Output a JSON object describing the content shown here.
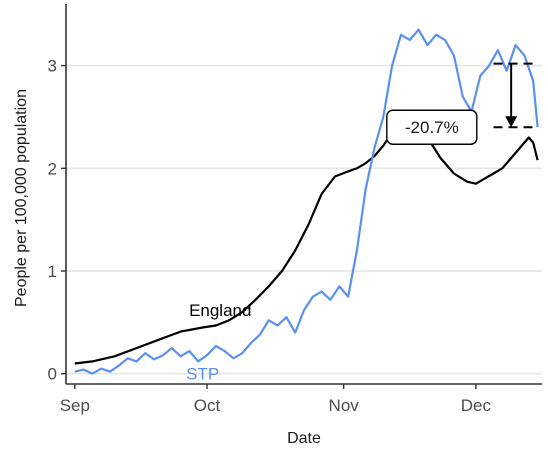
{
  "chart_data": {
    "type": "line",
    "title": "",
    "xlabel": "Date",
    "ylabel": "People per 100,000 population",
    "x_type": "date",
    "xlim": [
      "2020-08-30",
      "2020-12-16"
    ],
    "ylim": [
      -0.1,
      3.6
    ],
    "x_ticks": [
      {
        "date": "2020-09-01",
        "label": "Sep"
      },
      {
        "date": "2020-10-01",
        "label": "Oct"
      },
      {
        "date": "2020-11-01",
        "label": "Nov"
      },
      {
        "date": "2020-12-01",
        "label": "Dec"
      }
    ],
    "y_ticks": [
      {
        "value": 0,
        "label": "0"
      },
      {
        "value": 1,
        "label": "1"
      },
      {
        "value": 2,
        "label": "2"
      },
      {
        "value": 3,
        "label": "3"
      }
    ],
    "grid": "horizontal",
    "series": [
      {
        "name": "England",
        "color": "#000000",
        "points": [
          [
            "2020-09-01",
            0.1
          ],
          [
            "2020-09-05",
            0.12
          ],
          [
            "2020-09-10",
            0.17
          ],
          [
            "2020-09-15",
            0.25
          ],
          [
            "2020-09-20",
            0.33
          ],
          [
            "2020-09-25",
            0.41
          ],
          [
            "2020-09-30",
            0.45
          ],
          [
            "2020-10-03",
            0.47
          ],
          [
            "2020-10-06",
            0.52
          ],
          [
            "2020-10-09",
            0.6
          ],
          [
            "2020-10-12",
            0.72
          ],
          [
            "2020-10-15",
            0.85
          ],
          [
            "2020-10-18",
            1.0
          ],
          [
            "2020-10-21",
            1.2
          ],
          [
            "2020-10-24",
            1.45
          ],
          [
            "2020-10-27",
            1.75
          ],
          [
            "2020-10-30",
            1.92
          ],
          [
            "2020-11-02",
            1.97
          ],
          [
            "2020-11-04",
            2.0
          ],
          [
            "2020-11-06",
            2.05
          ],
          [
            "2020-11-08",
            2.12
          ],
          [
            "2020-11-10",
            2.22
          ],
          [
            "2020-11-12",
            2.35
          ],
          [
            "2020-11-14",
            2.45
          ],
          [
            "2020-11-16",
            2.5
          ],
          [
            "2020-11-18",
            2.45
          ],
          [
            "2020-11-20",
            2.3
          ],
          [
            "2020-11-23",
            2.1
          ],
          [
            "2020-11-26",
            1.95
          ],
          [
            "2020-11-29",
            1.87
          ],
          [
            "2020-12-01",
            1.85
          ],
          [
            "2020-12-03",
            1.9
          ],
          [
            "2020-12-05",
            1.95
          ],
          [
            "2020-12-07",
            2.0
          ],
          [
            "2020-12-09",
            2.1
          ],
          [
            "2020-12-12",
            2.25
          ],
          [
            "2020-12-13",
            2.3
          ],
          [
            "2020-12-14",
            2.25
          ],
          [
            "2020-12-15",
            2.08
          ]
        ]
      },
      {
        "name": "STP",
        "color": "#5b8ff0",
        "points": [
          [
            "2020-09-01",
            0.02
          ],
          [
            "2020-09-03",
            0.04
          ],
          [
            "2020-09-05",
            0.0
          ],
          [
            "2020-09-07",
            0.05
          ],
          [
            "2020-09-09",
            0.02
          ],
          [
            "2020-09-11",
            0.08
          ],
          [
            "2020-09-13",
            0.15
          ],
          [
            "2020-09-15",
            0.12
          ],
          [
            "2020-09-17",
            0.2
          ],
          [
            "2020-09-19",
            0.14
          ],
          [
            "2020-09-21",
            0.18
          ],
          [
            "2020-09-23",
            0.25
          ],
          [
            "2020-09-25",
            0.17
          ],
          [
            "2020-09-27",
            0.22
          ],
          [
            "2020-09-29",
            0.12
          ],
          [
            "2020-10-01",
            0.18
          ],
          [
            "2020-10-03",
            0.27
          ],
          [
            "2020-10-05",
            0.22
          ],
          [
            "2020-10-07",
            0.15
          ],
          [
            "2020-10-09",
            0.2
          ],
          [
            "2020-10-11",
            0.3
          ],
          [
            "2020-10-13",
            0.38
          ],
          [
            "2020-10-15",
            0.52
          ],
          [
            "2020-10-17",
            0.47
          ],
          [
            "2020-10-19",
            0.55
          ],
          [
            "2020-10-21",
            0.4
          ],
          [
            "2020-10-23",
            0.62
          ],
          [
            "2020-10-25",
            0.75
          ],
          [
            "2020-10-27",
            0.8
          ],
          [
            "2020-10-29",
            0.72
          ],
          [
            "2020-10-31",
            0.85
          ],
          [
            "2020-11-02",
            0.75
          ],
          [
            "2020-11-04",
            1.2
          ],
          [
            "2020-11-06",
            1.8
          ],
          [
            "2020-11-08",
            2.2
          ],
          [
            "2020-11-10",
            2.5
          ],
          [
            "2020-11-12",
            3.0
          ],
          [
            "2020-11-14",
            3.3
          ],
          [
            "2020-11-16",
            3.25
          ],
          [
            "2020-11-18",
            3.35
          ],
          [
            "2020-11-20",
            3.2
          ],
          [
            "2020-11-22",
            3.3
          ],
          [
            "2020-11-24",
            3.25
          ],
          [
            "2020-11-26",
            3.1
          ],
          [
            "2020-11-28",
            2.7
          ],
          [
            "2020-11-30",
            2.55
          ],
          [
            "2020-12-02",
            2.9
          ],
          [
            "2020-12-04",
            3.0
          ],
          [
            "2020-12-06",
            3.15
          ],
          [
            "2020-12-08",
            2.95
          ],
          [
            "2020-12-10",
            3.2
          ],
          [
            "2020-12-12",
            3.1
          ],
          [
            "2020-12-14",
            2.85
          ],
          [
            "2020-12-15",
            2.4
          ]
        ]
      }
    ],
    "series_labels": [
      {
        "text": "England",
        "date": "2020-10-04",
        "value": 0.62,
        "color": "#000000"
      },
      {
        "text": "STP",
        "date": "2020-09-30",
        "value": 0.0,
        "color": "#5b8ff0"
      }
    ],
    "annotation": {
      "label": "-20.7%",
      "from": {
        "date": "2020-12-09",
        "value": 3.02
      },
      "to": {
        "date": "2020-12-09",
        "value": 2.4
      },
      "dashed_lines": [
        {
          "start": "2020-12-05",
          "end": "2020-12-14",
          "value": 3.02
        },
        {
          "start": "2020-12-05",
          "end": "2020-12-14",
          "value": 2.4
        }
      ],
      "box_at": {
        "date": "2020-11-21",
        "value": 2.4
      }
    }
  }
}
